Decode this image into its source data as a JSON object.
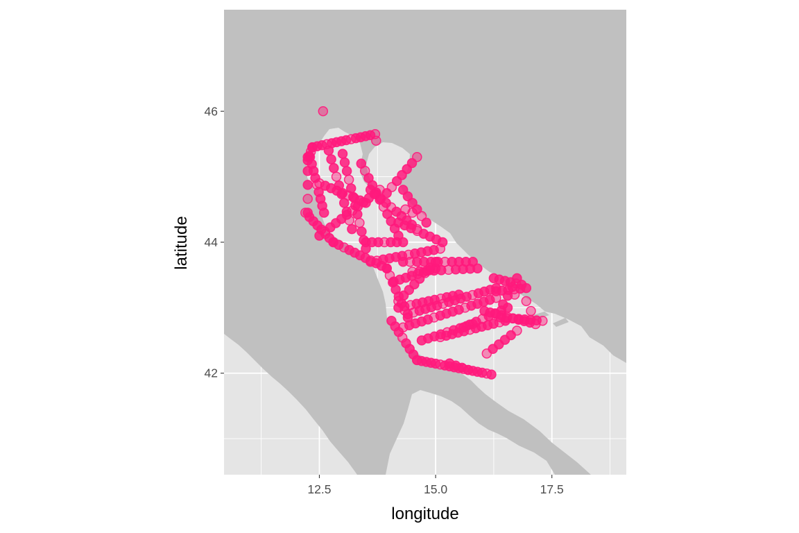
{
  "chart_data": {
    "type": "scatter",
    "title": "",
    "xlabel": "longitude",
    "ylabel": "latitude",
    "xlim": [
      10.45,
      19.1
    ],
    "ylim": [
      40.45,
      47.55
    ],
    "grid": true,
    "legend": "none",
    "x_ticks": [
      {
        "value": 12.5,
        "label": "12.5"
      },
      {
        "value": 15.0,
        "label": "15.0"
      },
      {
        "value": 17.5,
        "label": "17.5"
      }
    ],
    "y_ticks": [
      {
        "value": 42,
        "label": "42"
      },
      {
        "value": 44,
        "label": "44"
      },
      {
        "value": 46,
        "label": "46"
      }
    ],
    "colors": {
      "panel": "#e5e5e5",
      "grid": "#ffffff",
      "land": "#c0c0c0",
      "points": "#ff1a7c"
    },
    "tracks": [
      {
        "from": [
          12.25,
          45.25
        ],
        "to": [
          12.35,
          45.45
        ],
        "n": 4
      },
      {
        "from": [
          12.35,
          45.45
        ],
        "to": [
          13.7,
          45.65
        ],
        "n": 14
      },
      {
        "from": [
          12.3,
          45.3
        ],
        "to": [
          12.6,
          44.45
        ],
        "n": 9
      },
      {
        "from": [
          12.2,
          44.45
        ],
        "to": [
          12.8,
          44.0
        ],
        "n": 8
      },
      {
        "from": [
          12.8,
          44.0
        ],
        "to": [
          13.95,
          43.6
        ],
        "n": 11
      },
      {
        "from": [
          13.95,
          43.6
        ],
        "to": [
          14.4,
          42.85
        ],
        "n": 8
      },
      {
        "from": [
          14.05,
          42.8
        ],
        "to": [
          14.6,
          42.2
        ],
        "n": 8
      },
      {
        "from": [
          14.6,
          42.2
        ],
        "to": [
          16.2,
          41.98
        ],
        "n": 17
      },
      {
        "from": [
          12.7,
          45.4
        ],
        "to": [
          13.2,
          44.2
        ],
        "n": 10
      },
      {
        "from": [
          13.0,
          45.35
        ],
        "to": [
          13.5,
          43.9
        ],
        "n": 12
      },
      {
        "from": [
          13.4,
          45.2
        ],
        "to": [
          14.2,
          44.1
        ],
        "n": 11
      },
      {
        "from": [
          12.5,
          44.9
        ],
        "to": [
          13.5,
          44.6
        ],
        "n": 9
      },
      {
        "from": [
          12.5,
          44.1
        ],
        "to": [
          13.8,
          44.8
        ],
        "n": 12
      },
      {
        "from": [
          13.6,
          44.8
        ],
        "to": [
          14.6,
          44.2
        ],
        "n": 10
      },
      {
        "from": [
          14.3,
          44.8
        ],
        "to": [
          14.8,
          44.3
        ],
        "n": 6
      },
      {
        "from": [
          14.2,
          44.3
        ],
        "to": [
          15.15,
          44.0
        ],
        "n": 8
      },
      {
        "from": [
          14.6,
          45.3
        ],
        "to": [
          13.95,
          44.75
        ],
        "n": 7
      },
      {
        "from": [
          13.5,
          44.0
        ],
        "to": [
          14.3,
          44.0
        ],
        "n": 7
      },
      {
        "from": [
          13.6,
          43.7
        ],
        "to": [
          15.1,
          43.9
        ],
        "n": 12
      },
      {
        "from": [
          14.1,
          43.4
        ],
        "to": [
          15.0,
          43.6
        ],
        "n": 8
      },
      {
        "from": [
          14.3,
          43.7
        ],
        "to": [
          15.8,
          43.7
        ],
        "n": 11
      },
      {
        "from": [
          14.5,
          43.55
        ],
        "to": [
          15.9,
          43.6
        ],
        "n": 10
      },
      {
        "from": [
          14.2,
          43.1
        ],
        "to": [
          15.0,
          43.7
        ],
        "n": 8
      },
      {
        "from": [
          14.2,
          43.0
        ],
        "to": [
          15.5,
          43.2
        ],
        "n": 11
      },
      {
        "from": [
          14.4,
          42.9
        ],
        "to": [
          16.3,
          43.3
        ],
        "n": 16
      },
      {
        "from": [
          14.3,
          42.7
        ],
        "to": [
          16.3,
          43.15
        ],
        "n": 16
      },
      {
        "from": [
          14.7,
          42.5
        ],
        "to": [
          15.8,
          42.75
        ],
        "n": 9
      },
      {
        "from": [
          15.1,
          42.55
        ],
        "to": [
          16.5,
          42.8
        ],
        "n": 12
      },
      {
        "from": [
          15.6,
          42.7
        ],
        "to": [
          16.55,
          43.0
        ],
        "n": 8
      },
      {
        "from": [
          16.1,
          42.3
        ],
        "to": [
          16.75,
          42.65
        ],
        "n": 6
      },
      {
        "from": [
          16.05,
          42.95
        ],
        "to": [
          17.15,
          42.75
        ],
        "n": 10
      },
      {
        "from": [
          16.25,
          43.45
        ],
        "to": [
          16.85,
          43.35
        ],
        "n": 6
      },
      {
        "from": [
          16.3,
          43.25
        ],
        "to": [
          16.95,
          43.3
        ],
        "n": 6
      },
      {
        "from": [
          16.4,
          42.85
        ],
        "to": [
          17.3,
          42.8
        ],
        "n": 8
      },
      {
        "from": [
          16.45,
          43.05
        ],
        "to": [
          16.75,
          43.45
        ],
        "n": 4
      },
      {
        "from": [
          15.7,
          42.05
        ],
        "to": [
          15.3,
          42.15
        ],
        "n": 4
      },
      {
        "from": [
          12.25,
          44.45
        ],
        "to": [
          12.25,
          45.3
        ],
        "n": 5
      }
    ],
    "extra_points": [
      [
        12.58,
        46.0
      ],
      [
        13.72,
        45.55
      ],
      [
        14.35,
        44.5
      ],
      [
        14.5,
        44.45
      ],
      [
        16.95,
        43.1
      ],
      [
        17.05,
        42.95
      ],
      [
        16.7,
        43.2
      ]
    ]
  }
}
